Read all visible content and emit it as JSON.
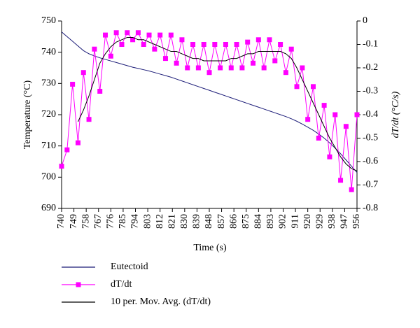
{
  "chart_data": {
    "type": "line",
    "x": [
      740,
      744,
      748,
      752,
      756,
      760,
      764,
      768,
      772,
      776,
      780,
      784,
      788,
      792,
      796,
      800,
      804,
      808,
      812,
      816,
      820,
      824,
      828,
      832,
      836,
      840,
      844,
      848,
      852,
      856,
      860,
      864,
      868,
      872,
      876,
      880,
      884,
      888,
      892,
      896,
      900,
      904,
      908,
      912,
      916,
      920,
      924,
      928,
      932,
      936,
      940,
      944,
      948,
      952,
      956
    ],
    "xlim": [
      740,
      956
    ],
    "xticks": [
      740,
      749,
      758,
      767,
      776,
      785,
      794,
      803,
      812,
      821,
      830,
      839,
      848,
      857,
      866,
      875,
      884,
      893,
      902,
      911,
      920,
      929,
      938,
      947,
      956
    ],
    "ylim": [
      690,
      750
    ],
    "yticks": [
      690,
      700,
      710,
      720,
      730,
      740,
      750
    ],
    "y2lim": [
      -0.8,
      0
    ],
    "y2ticks": [
      -0.8,
      -0.7,
      -0.6,
      -0.5,
      -0.4,
      -0.3,
      -0.2,
      -0.1,
      0
    ],
    "xlabel": "Time (s)",
    "ylabel": "Temperature (°C)",
    "y2label": "dT/dt (°C/s)",
    "series": [
      {
        "name": "Eutectoid",
        "color": "#1c1c78",
        "values": [
          746.5,
          745,
          743.5,
          742,
          740.5,
          739.5,
          738.8,
          738.2,
          737.7,
          737.2,
          736.7,
          736.2,
          735.7,
          735.2,
          734.8,
          734.4,
          734,
          733.5,
          733,
          732.5,
          732,
          731.4,
          730.8,
          730.2,
          729.6,
          729,
          728.4,
          727.8,
          727.2,
          726.6,
          726,
          725.4,
          724.8,
          724.2,
          723.6,
          723,
          722.4,
          721.8,
          721.2,
          720.6,
          720,
          719.4,
          718.7,
          717.9,
          717,
          716,
          715,
          713.8,
          712.5,
          711,
          709.3,
          707.5,
          705.5,
          703.5,
          701.5
        ]
      },
      {
        "name": "dT/dt",
        "color": "#ff00ff",
        "axis": "y2",
        "marker": "square",
        "values": [
          -0.62,
          -0.55,
          -0.27,
          -0.52,
          -0.22,
          -0.42,
          -0.12,
          -0.3,
          -0.06,
          -0.15,
          -0.05,
          -0.1,
          -0.05,
          -0.08,
          -0.05,
          -0.1,
          -0.06,
          -0.12,
          -0.06,
          -0.16,
          -0.06,
          -0.18,
          -0.08,
          -0.2,
          -0.1,
          -0.2,
          -0.1,
          -0.22,
          -0.1,
          -0.2,
          -0.1,
          -0.2,
          -0.1,
          -0.2,
          -0.09,
          -0.18,
          -0.08,
          -0.2,
          -0.08,
          -0.17,
          -0.1,
          -0.22,
          -0.12,
          -0.28,
          -0.2,
          -0.42,
          -0.28,
          -0.5,
          -0.36,
          -0.58,
          -0.4,
          -0.68,
          -0.45,
          -0.72,
          -0.4
        ]
      },
      {
        "name": "10 per. Mov. Avg. (dT/dt)",
        "color": "#000000",
        "axis": "y2",
        "values": [
          null,
          null,
          null,
          -0.43,
          -0.38,
          -0.32,
          -0.25,
          -0.18,
          -0.14,
          -0.11,
          -0.09,
          -0.08,
          -0.07,
          -0.07,
          -0.08,
          -0.08,
          -0.09,
          -0.1,
          -0.11,
          -0.12,
          -0.13,
          -0.13,
          -0.14,
          -0.15,
          -0.16,
          -0.16,
          -0.17,
          -0.17,
          -0.17,
          -0.17,
          -0.17,
          -0.16,
          -0.16,
          -0.15,
          -0.14,
          -0.14,
          -0.13,
          -0.13,
          -0.13,
          -0.13,
          -0.13,
          -0.14,
          -0.16,
          -0.2,
          -0.25,
          -0.3,
          -0.35,
          -0.4,
          -0.45,
          -0.5,
          -0.54,
          -0.58,
          -0.61,
          -0.63,
          -0.64
        ]
      }
    ]
  }
}
